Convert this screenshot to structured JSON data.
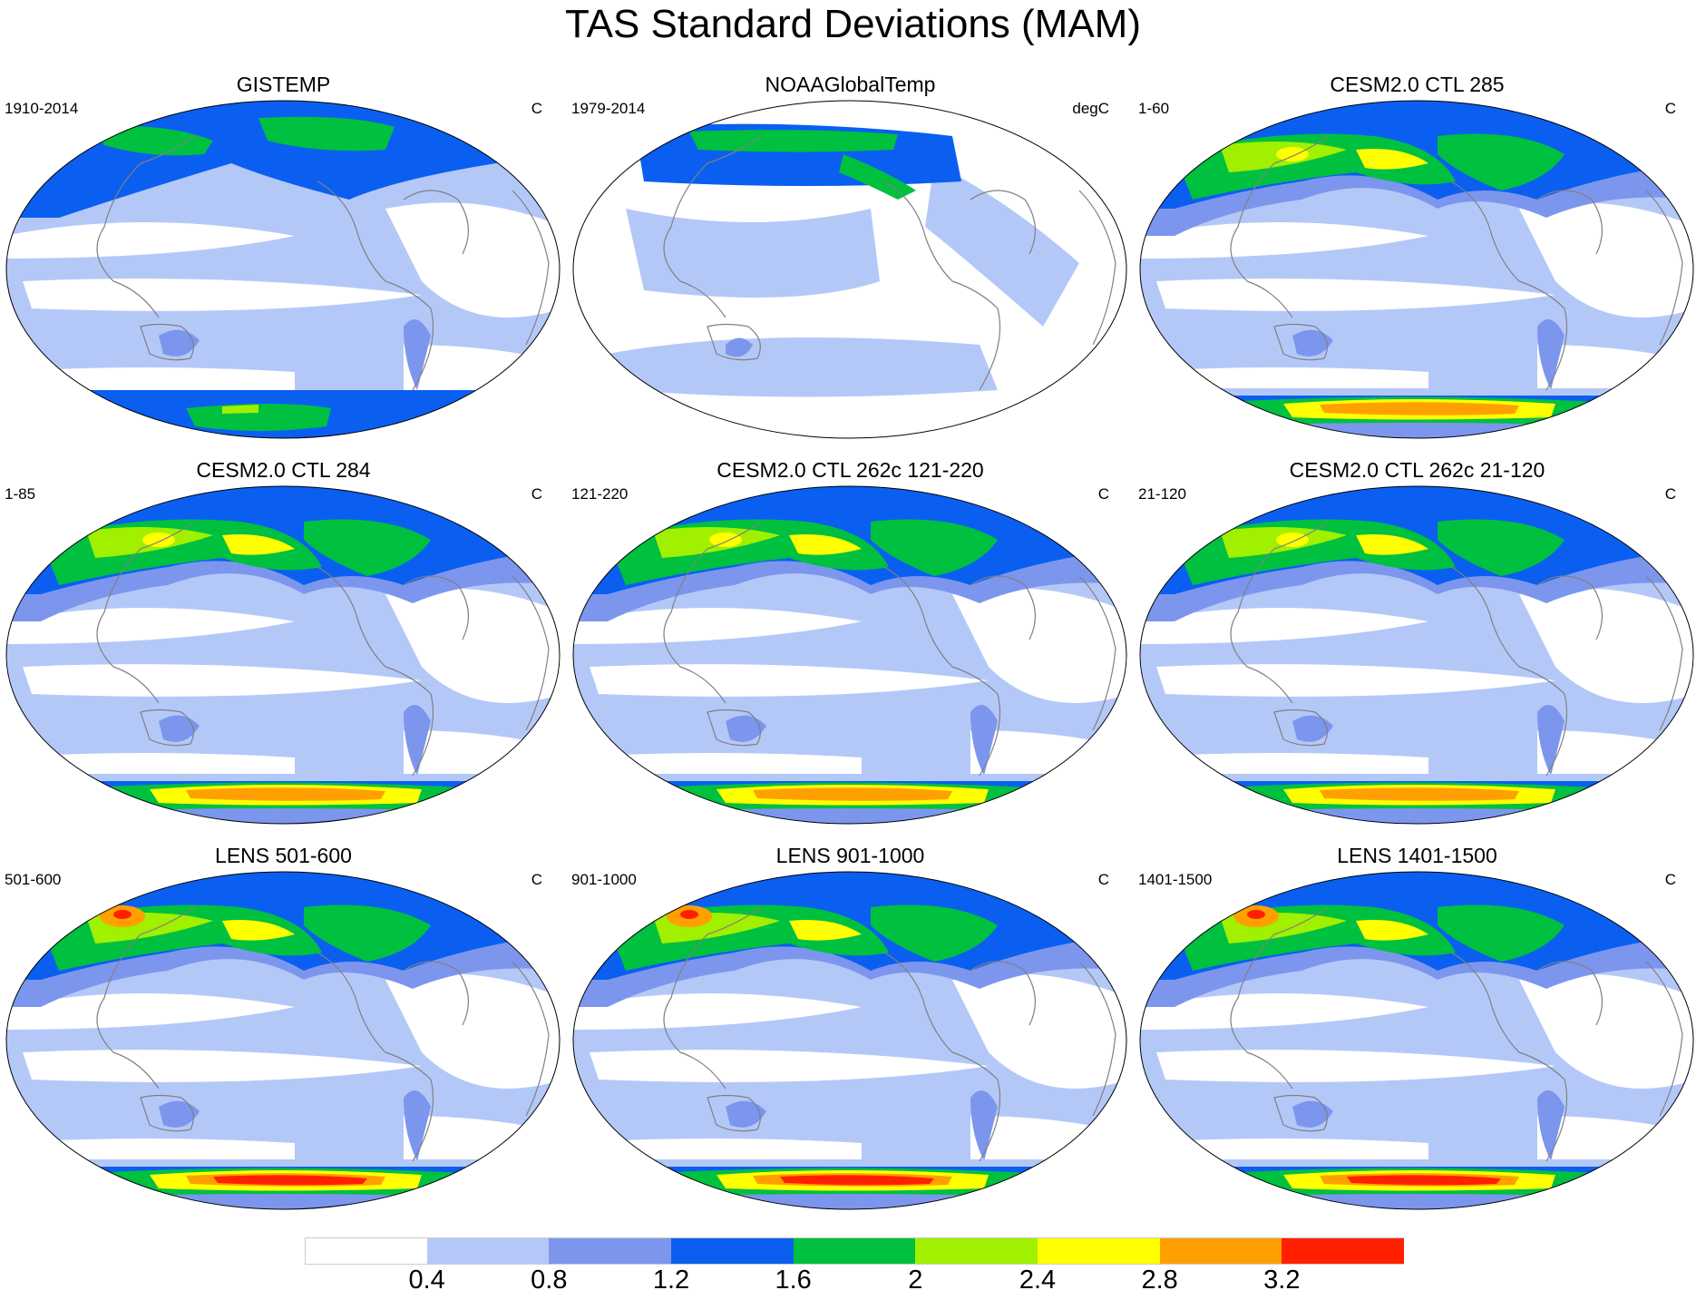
{
  "title": "TAS Standard Deviations (MAM)",
  "panels": [
    {
      "title": "GISTEMP",
      "left_label": "1910-2014",
      "right_label": "C",
      "coverage": "gistemp"
    },
    {
      "title": "NOAAGlobalTemp",
      "left_label": "1979-2014",
      "right_label": "degC",
      "coverage": "noaa"
    },
    {
      "title": "CESM2.0 CTL 285",
      "left_label": "1-60",
      "right_label": "C",
      "coverage": "model"
    },
    {
      "title": "CESM2.0 CTL 284",
      "left_label": "1-85",
      "right_label": "C",
      "coverage": "model"
    },
    {
      "title": "CESM2.0 CTL 262c 121-220",
      "left_label": "121-220",
      "right_label": "C",
      "coverage": "model"
    },
    {
      "title": "CESM2.0 CTL 262c 21-120",
      "left_label": "21-120",
      "right_label": "C",
      "coverage": "model"
    },
    {
      "title": "LENS 501-600",
      "left_label": "501-600",
      "right_label": "C",
      "coverage": "lens"
    },
    {
      "title": "LENS 901-1000",
      "left_label": "901-1000",
      "right_label": "C",
      "coverage": "lens"
    },
    {
      "title": "LENS 1401-1500",
      "left_label": "1401-1500",
      "right_label": "C",
      "coverage": "lens"
    }
  ],
  "colorbar": {
    "labels": [
      "0.4",
      "0.8",
      "1.2",
      "1.6",
      "2",
      "2.4",
      "2.8",
      "3.2"
    ],
    "colors": [
      "#ffffff",
      "#b4c8f8",
      "#7c96ee",
      "#0a5ff0",
      "#00c040",
      "#a0f000",
      "#ffff00",
      "#ffa000",
      "#ff2000"
    ]
  },
  "map_colors": {
    "ocean_low": "#ffffff",
    "level_1": "#b4c8f8",
    "level_2": "#7c96ee",
    "level_3": "#0a5ff0",
    "level_4": "#00c040",
    "level_5": "#a0f000",
    "level_6": "#ffff00",
    "level_7": "#ffa000",
    "level_8": "#ff2000",
    "coastline": "#808080"
  }
}
